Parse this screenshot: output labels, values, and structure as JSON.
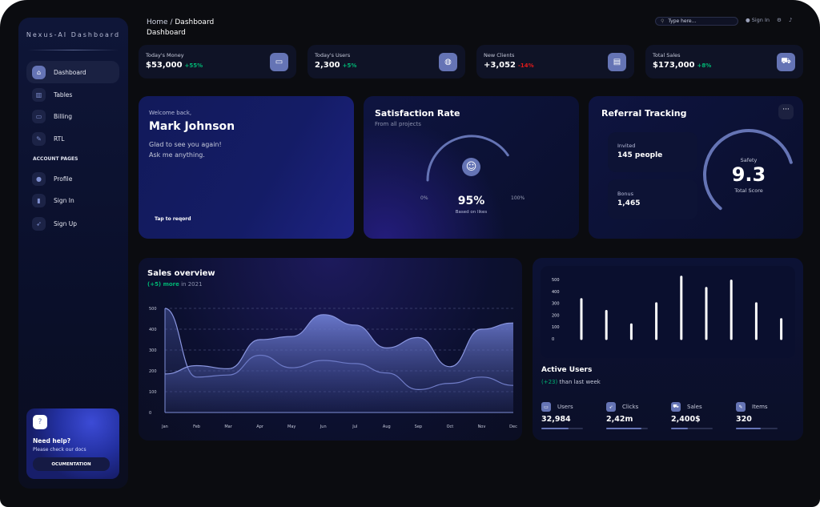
{
  "sidebar": {
    "brand": "Nexus-AI Dashboard",
    "items": [
      {
        "label": "Dashboard",
        "icon": "home-icon"
      },
      {
        "label": "Tables",
        "icon": "chart-icon"
      },
      {
        "label": "Billing",
        "icon": "card-icon"
      },
      {
        "label": "RTL",
        "icon": "wrench-icon"
      }
    ],
    "section": "ACCOUNT PAGES",
    "account_items": [
      {
        "label": "Profile",
        "icon": "user-icon"
      },
      {
        "label": "Sign In",
        "icon": "document-icon"
      },
      {
        "label": "Sign Up",
        "icon": "rocket-icon"
      }
    ],
    "help": {
      "title": "Need help?",
      "text": "Please check our docs",
      "button": "OCUMENTATION"
    }
  },
  "header": {
    "breadcrumb_home": "Home",
    "breadcrumb_sep": "/",
    "breadcrumb_current": "Dashboard",
    "title": "Dashboard",
    "search_placeholder": "Type here...",
    "sign_in": "Sign In"
  },
  "stats": [
    {
      "label": "Today's Money",
      "value": "$53,000",
      "change": "+55%",
      "positive": true,
      "icon": "wallet-icon"
    },
    {
      "label": "Today's Users",
      "value": "2,300",
      "change": "+5%",
      "positive": true,
      "icon": "globe-icon"
    },
    {
      "label": "New Clients",
      "value": "+3,052",
      "change": "-14%",
      "positive": false,
      "icon": "document-icon"
    },
    {
      "label": "Total Sales",
      "value": "$173,000",
      "change": "+8%",
      "positive": true,
      "icon": "cart-icon"
    }
  ],
  "welcome": {
    "greeting": "Welcome back,",
    "name": "Mark Johnson",
    "line1": "Glad to see you again!",
    "line2": "Ask me anything.",
    "action": "Tap to reqord"
  },
  "satisfaction": {
    "title": "Satisfaction Rate",
    "subtitle": "From all projects",
    "min": "0%",
    "max": "100%",
    "value": "95%",
    "value_num": 95,
    "caption": "Based on likes"
  },
  "referral": {
    "title": "Referral Tracking",
    "invited_label": "Invited",
    "invited_value": "145 people",
    "bonus_label": "Bonus",
    "bonus_value": "1,465",
    "safety_label": "Safety",
    "score": "9.3",
    "score_num": 9.3,
    "score_caption": "Total Score"
  },
  "colors": {
    "accent": "#6574b5",
    "positive": "#01b574",
    "negative": "#e31a1a"
  },
  "sales": {
    "title": "Sales overview",
    "highlight": "(+5) more",
    "rest": "in 2021"
  },
  "active_users": {
    "title": "Active Users",
    "highlight": "(+23)",
    "rest": "than last week",
    "metrics": [
      {
        "label": "Users",
        "value": "32,984",
        "progress": 0.65,
        "icon": "wallet-icon"
      },
      {
        "label": "Clicks",
        "value": "2,42m",
        "progress": 0.85,
        "icon": "rocket-icon"
      },
      {
        "label": "Sales",
        "value": "2,400$",
        "progress": 0.4,
        "icon": "cart-icon"
      },
      {
        "label": "Items",
        "value": "320",
        "progress": 0.6,
        "icon": "wrench-icon"
      }
    ]
  },
  "chart_data": [
    {
      "type": "area",
      "categories": [
        "Jan",
        "Feb",
        "Mar",
        "Apr",
        "May",
        "Jun",
        "Jul",
        "Aug",
        "Sep",
        "Oct",
        "Nov",
        "Dec"
      ],
      "yticks": [
        "0",
        "100",
        "200",
        "300",
        "400",
        "500"
      ],
      "ylim": [
        0,
        500
      ],
      "grid": true,
      "series": [
        {
          "values": [
            500,
            170,
            180,
            275,
            215,
            250,
            235,
            190,
            110,
            140,
            170,
            130
          ]
        },
        {
          "values": [
            185,
            225,
            210,
            350,
            365,
            470,
            420,
            310,
            360,
            220,
            400,
            430
          ]
        }
      ]
    },
    {
      "type": "bar",
      "yticks": [
        "0",
        "100",
        "200",
        "300",
        "400",
        "500"
      ],
      "ylim": [
        0,
        500
      ],
      "values": [
        333,
        233,
        120,
        298,
        522,
        427,
        489,
        298,
        164
      ]
    }
  ]
}
